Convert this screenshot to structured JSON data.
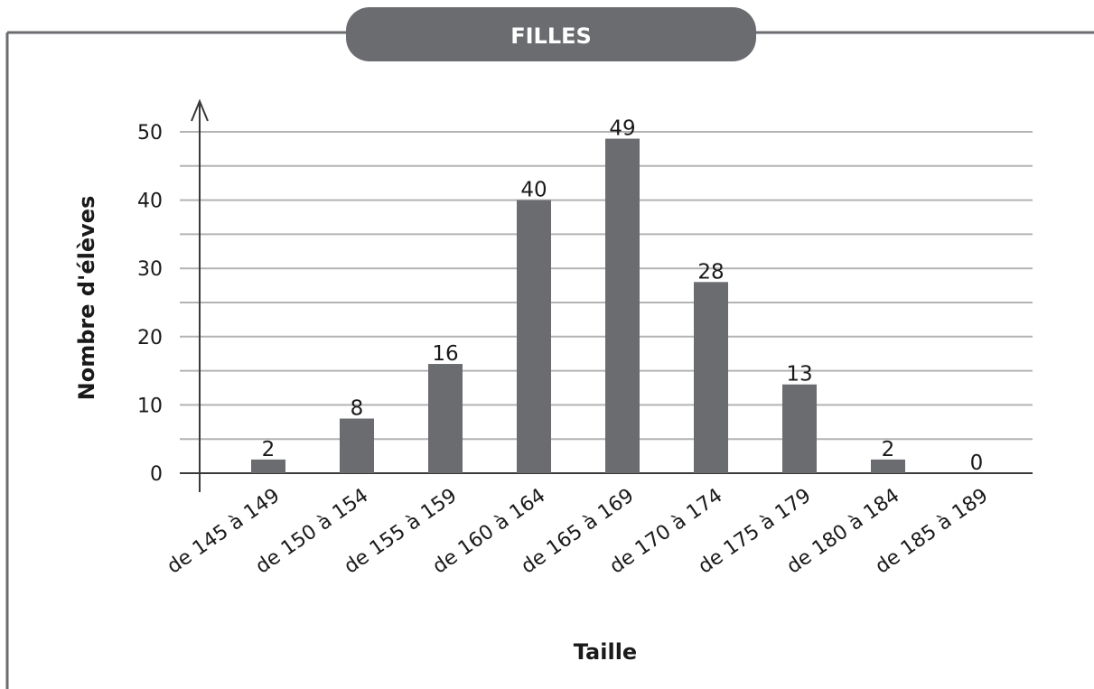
{
  "chart_data": {
    "type": "bar",
    "title": "FILLES",
    "xlabel": "Taille",
    "ylabel": "Nombre d'élèves",
    "categories": [
      "de 145 à 149",
      "de 150 à 154",
      "de 155 à 159",
      "de 160 à 164",
      "de 165 à 169",
      "de 170 à 174",
      "de 175 à 179",
      "de 180 à 184",
      "de 185 à 189"
    ],
    "values": [
      2,
      8,
      16,
      40,
      49,
      28,
      13,
      2,
      0
    ],
    "data_labels": [
      "2",
      "8",
      "16",
      "40",
      "49",
      "28",
      "13",
      "2",
      "0"
    ],
    "ylim": [
      0,
      50
    ],
    "yticks": [
      0,
      10,
      20,
      30,
      40,
      50
    ],
    "ytick_labels": [
      "0",
      "10",
      "20",
      "30",
      "40",
      "50"
    ],
    "minor_grid_step": 5,
    "grid": true,
    "legend": "none",
    "colors": {
      "bar": "#6b6c70",
      "title_bg": "#6b6c70",
      "frame": "#6b6c70",
      "grid": "#b3b3b3",
      "axis": "#3a3a3a"
    }
  }
}
